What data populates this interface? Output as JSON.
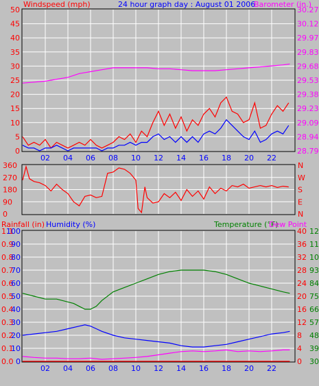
{
  "chart_data": [
    {
      "type": "line",
      "panel": "wind-barometer",
      "title": "24 hour graph day : August 01 2006",
      "left_axis_label": "Windspeed (mph)",
      "right_axis_label": "Barometer (in.)",
      "x_ticks": [
        "02",
        "04",
        "06",
        "08",
        "10",
        "12",
        "14",
        "16",
        "18",
        "20",
        "22"
      ],
      "left_ticks": [
        "0",
        "5",
        "10",
        "15",
        "20",
        "25",
        "30",
        "35",
        "40",
        "45",
        "50"
      ],
      "right_ticks": [
        "28.79",
        "28.94",
        "29.09",
        "29.23",
        "29.38",
        "29.53",
        "29.68",
        "29.83",
        "29.97",
        "30.12",
        "30.27"
      ],
      "xlim": [
        0,
        24
      ],
      "ylim_left": [
        0,
        50
      ],
      "ylim_right": [
        28.79,
        30.27
      ],
      "series": [
        {
          "axis": "right",
          "color": "#ff00ff",
          "hours": [
            0,
            1,
            2,
            3,
            4,
            5,
            6,
            7,
            8,
            9,
            10,
            11,
            12,
            13,
            14,
            15,
            16,
            17,
            18,
            19,
            20,
            21,
            22,
            23,
            23.6
          ],
          "values": [
            29.5,
            29.51,
            29.52,
            29.54,
            29.56,
            29.6,
            29.62,
            29.64,
            29.66,
            29.66,
            29.66,
            29.66,
            29.65,
            29.65,
            29.64,
            29.63,
            29.63,
            29.63,
            29.64,
            29.65,
            29.66,
            29.67,
            29.68,
            29.69,
            29.7
          ]
        },
        {
          "axis": "left",
          "color": "#ff0000",
          "hours": [
            0,
            0.5,
            1,
            1.5,
            2,
            2.5,
            3,
            3.5,
            4,
            4.5,
            5,
            5.5,
            6,
            6.5,
            7,
            7.5,
            8,
            8.5,
            9,
            9.5,
            10,
            10.5,
            11,
            11.5,
            12,
            12.5,
            13,
            13.5,
            14,
            14.5,
            15,
            15.5,
            16,
            16.5,
            17,
            17.5,
            18,
            18.5,
            19,
            19.5,
            20,
            20.5,
            21,
            21.5,
            22,
            22.5,
            23,
            23.5
          ],
          "values": [
            5,
            2,
            3,
            2,
            4,
            1,
            3,
            2,
            1,
            2,
            3,
            2,
            4,
            2,
            1,
            2,
            3,
            5,
            4,
            6,
            3,
            7,
            5,
            10,
            14,
            9,
            13,
            8,
            12,
            7,
            11,
            9,
            13,
            15,
            12,
            17,
            19,
            14,
            13,
            10,
            11,
            17,
            8,
            9,
            13,
            16,
            14,
            17
          ]
        },
        {
          "axis": "left",
          "color": "#0000ff",
          "hours": [
            0,
            0.5,
            1,
            1.5,
            2,
            2.5,
            3,
            3.5,
            4,
            4.5,
            5,
            5.5,
            6,
            6.5,
            7,
            7.5,
            8,
            8.5,
            9,
            9.5,
            10,
            10.5,
            11,
            11.5,
            12,
            12.5,
            13,
            13.5,
            14,
            14.5,
            15,
            15.5,
            16,
            16.5,
            17,
            17.5,
            18,
            18.5,
            19,
            19.5,
            20,
            20.5,
            21,
            21.5,
            22,
            22.5,
            23,
            23.5
          ],
          "values": [
            2,
            1,
            1,
            0,
            1,
            1,
            2,
            1,
            0,
            1,
            1,
            1,
            1,
            1,
            0,
            1,
            1,
            2,
            2,
            3,
            2,
            3,
            3,
            5,
            6,
            4,
            5,
            3,
            5,
            3,
            5,
            3,
            6,
            7,
            6,
            8,
            11,
            9,
            7,
            5,
            4,
            7,
            3,
            4,
            6,
            7,
            6,
            9
          ]
        }
      ]
    },
    {
      "type": "line",
      "panel": "wind-direction",
      "left_ticks": [
        "0",
        "90",
        "180",
        "270",
        "360"
      ],
      "right_ticks": [
        "N",
        "E",
        "S",
        "W",
        "N"
      ],
      "xlim": [
        0,
        24
      ],
      "ylim_left": [
        0,
        360
      ],
      "series": [
        {
          "axis": "left",
          "color": "#ff0000",
          "hours": [
            0,
            0.3,
            0.6,
            1,
            1.5,
            2,
            2.5,
            3,
            3.5,
            4,
            4.5,
            5,
            5.5,
            6,
            6.5,
            7,
            7.5,
            8,
            8.5,
            9,
            9.5,
            10,
            10.2,
            10.5,
            10.8,
            11,
            11.5,
            12,
            12.5,
            13,
            13.5,
            14,
            14.5,
            15,
            15.5,
            16,
            16.5,
            17,
            17.5,
            18,
            18.5,
            19,
            19.5,
            20,
            20.5,
            21,
            21.5,
            22,
            22.5,
            23,
            23.5
          ],
          "values": [
            250,
            350,
            260,
            240,
            230,
            210,
            170,
            220,
            180,
            150,
            90,
            60,
            130,
            140,
            120,
            130,
            300,
            310,
            340,
            330,
            300,
            250,
            40,
            10,
            200,
            120,
            80,
            90,
            150,
            120,
            160,
            100,
            180,
            130,
            170,
            110,
            200,
            150,
            190,
            170,
            210,
            200,
            220,
            190,
            200,
            210,
            200,
            210,
            195,
            205,
            200
          ]
        }
      ]
    },
    {
      "type": "line",
      "panel": "temp-humidity",
      "left_label_1": "Rainfall (in)",
      "left_label_2": "Humidity (%)",
      "right_label_1": "Temperature (°F)",
      "right_label_2": "Dew Point",
      "x_ticks": [
        "02",
        "04",
        "06",
        "08",
        "10",
        "12",
        "14",
        "16",
        "18",
        "20",
        "22"
      ],
      "humidity_ticks": [
        "0",
        "10",
        "20",
        "30",
        "40",
        "50",
        "60",
        "70",
        "80",
        "90",
        "100"
      ],
      "rain_ticks": [
        "0.0",
        "0.1",
        "0.2",
        "0.3",
        "0.4",
        "0.5",
        "0.6",
        "0.7",
        "0.8",
        "0.9",
        "1.1"
      ],
      "dew_ticks": [
        "0",
        "4",
        "8",
        "12",
        "16",
        "20",
        "24",
        "28",
        "32",
        "36",
        "40"
      ],
      "temp_ticks": [
        "30",
        "39",
        "48",
        "57",
        "66",
        "75",
        "84",
        "93",
        "102",
        "111",
        "120"
      ],
      "xlim": [
        0,
        24
      ],
      "ylim_temperature": [
        30,
        120
      ],
      "ylim_humidity": [
        0,
        100
      ],
      "ylim_dewpoint": [
        0,
        40
      ],
      "ylim_rain": [
        0,
        1.1
      ],
      "series": [
        {
          "axis": "temperature",
          "color": "#008000",
          "hours": [
            0,
            1,
            2,
            3,
            4,
            4.5,
            5,
            5.5,
            6,
            6.5,
            7,
            8,
            9,
            10,
            11,
            12,
            13,
            14,
            15,
            16,
            17,
            18,
            19,
            20,
            21,
            22,
            23,
            23.6
          ],
          "values": [
            77,
            75,
            73,
            73,
            71,
            70,
            68,
            66,
            66,
            68,
            72,
            78,
            81,
            84,
            87,
            90,
            92,
            93,
            93,
            93,
            92,
            90,
            87,
            84,
            82,
            80,
            78,
            77
          ]
        },
        {
          "axis": "humidity",
          "color": "#0000ff",
          "hours": [
            0,
            1,
            2,
            3,
            4,
            5,
            5.5,
            6,
            6.5,
            7,
            8,
            9,
            10,
            11,
            12,
            13,
            14,
            15,
            16,
            17,
            18,
            19,
            20,
            21,
            22,
            23,
            23.6
          ],
          "values": [
            20,
            21,
            22,
            23,
            25,
            27,
            28,
            27,
            25,
            23,
            20,
            18,
            17,
            16,
            15,
            14,
            12,
            11,
            11,
            12,
            13,
            15,
            17,
            19,
            21,
            22,
            23
          ]
        },
        {
          "axis": "dewpoint",
          "color": "#ff00ff",
          "hours": [
            0,
            1,
            2,
            3,
            4,
            5,
            6,
            7,
            8,
            9,
            10,
            11,
            12,
            13,
            14,
            15,
            16,
            17,
            18,
            19,
            20,
            21,
            22,
            23,
            23.6
          ],
          "values": [
            1.5,
            1.2,
            1.0,
            1.0,
            0.8,
            0.8,
            1.0,
            0.6,
            0.8,
            1.0,
            1.2,
            1.5,
            2.0,
            2.5,
            3.0,
            3.2,
            3.0,
            3.2,
            3.5,
            3.0,
            3.2,
            3.0,
            3.2,
            3.5,
            3.5
          ]
        },
        {
          "axis": "rain",
          "color": "#ff0000",
          "hours": [
            0,
            23.6
          ],
          "values": [
            0,
            0
          ]
        }
      ]
    }
  ],
  "colors": {
    "background": "#c0c0c0",
    "grid": "#ffffff",
    "wind_label": "#ff0000",
    "title": "#0000ff",
    "barometer_label": "#ff00ff",
    "temperature_label": "#008000"
  }
}
